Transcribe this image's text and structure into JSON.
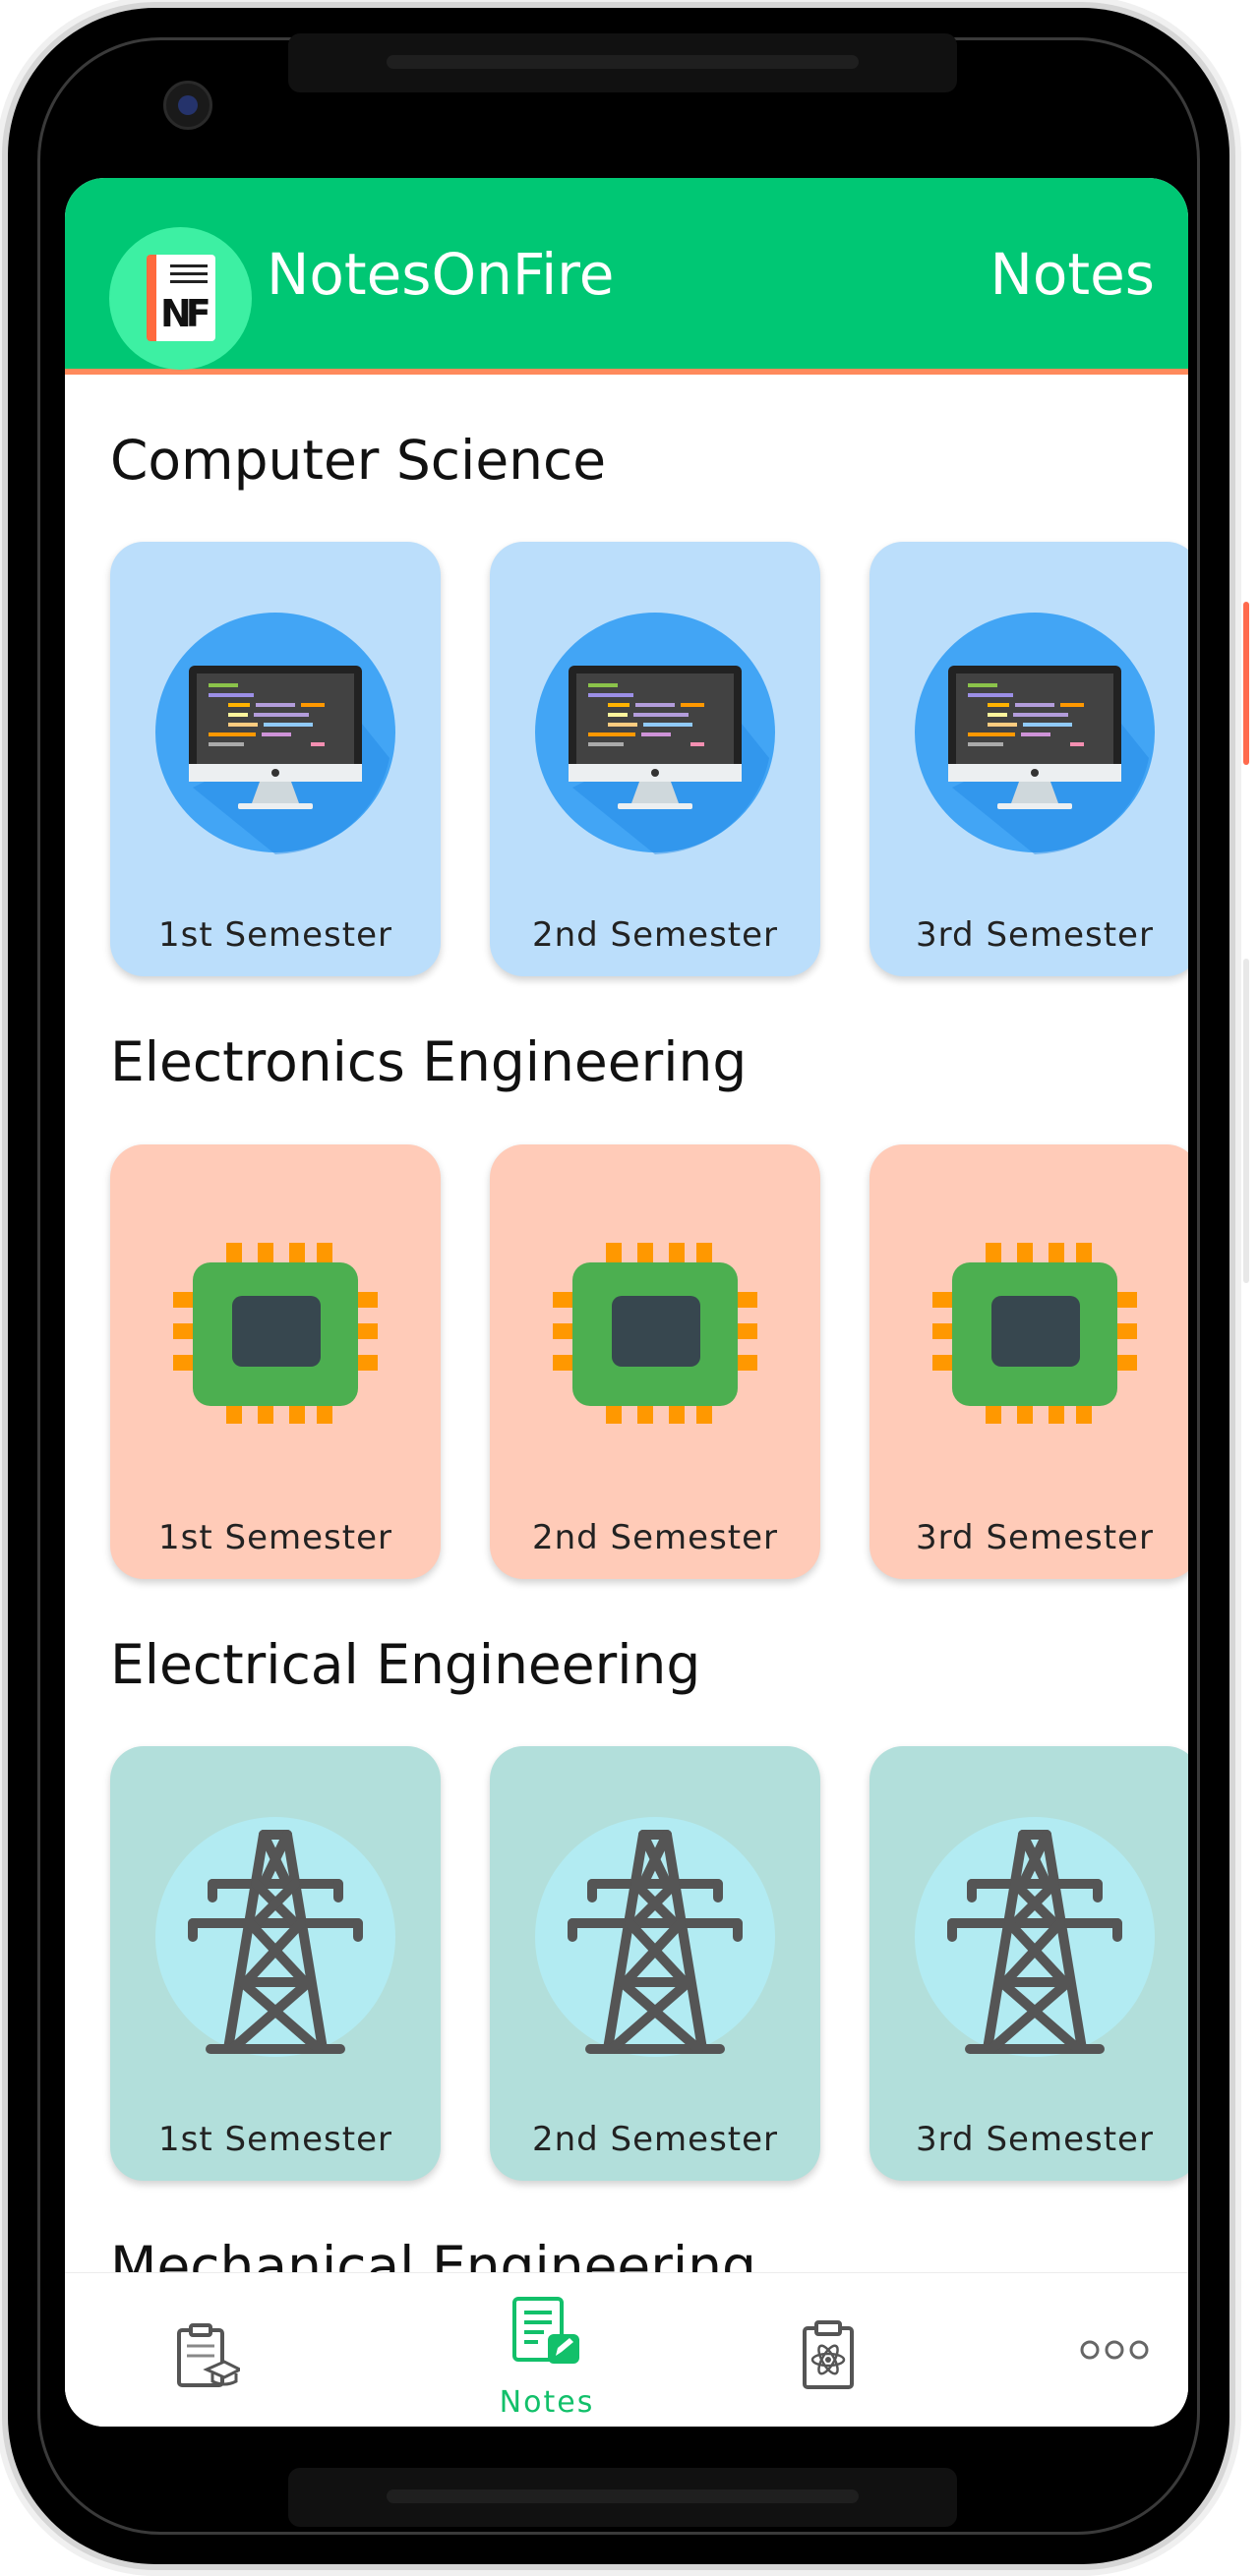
{
  "app": {
    "title": "NotesOnFire",
    "section": "Notes"
  },
  "sections": [
    {
      "title": "Computer Science",
      "cards": [
        "1st Semester",
        "2nd Semester",
        "3rd Semester"
      ]
    },
    {
      "title": "Electronics Engineering",
      "cards": [
        "1st Semester",
        "2nd Semester",
        "3rd Semester"
      ]
    },
    {
      "title": "Electrical Engineering",
      "cards": [
        "1st Semester",
        "2nd Semester",
        "3rd Semester"
      ]
    },
    {
      "title": "Mechanical Engineering",
      "cards": []
    }
  ],
  "nav": {
    "items": [
      {
        "icon": "clipboard-graduation-cap-icon",
        "label": ""
      },
      {
        "icon": "notes-edit-icon",
        "label": "Notes"
      },
      {
        "icon": "clipboard-atom-icon",
        "label": ""
      },
      {
        "icon": "more-dots-icon",
        "label": ""
      }
    ]
  },
  "colors": {
    "primary": "#00c774",
    "accent": "#ff8a5c",
    "cs_card": "#bbdefb",
    "ece_card": "#ffcbb8",
    "ee_card": "#b2dfdb"
  }
}
